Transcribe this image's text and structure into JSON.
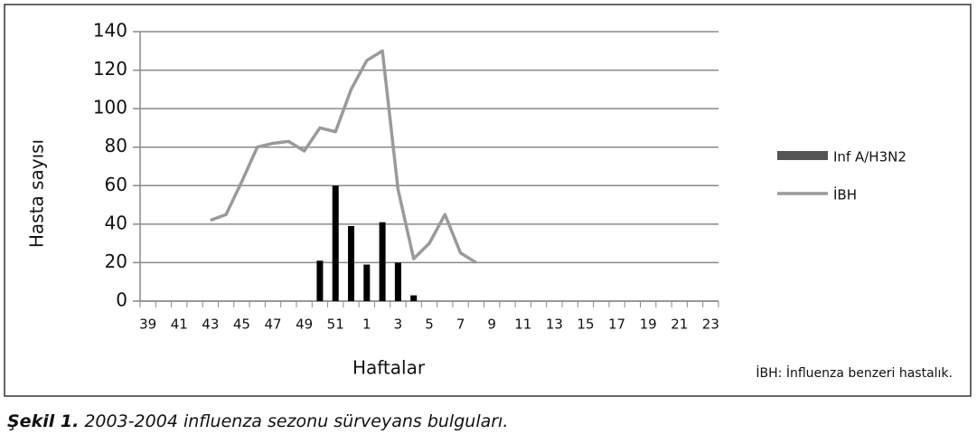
{
  "chart_data": {
    "type": "bar-line",
    "y_label": "Hasta sayısı",
    "x_label": "Haftalar",
    "annotation": "İBH: İnfluenza benzeri hastalık.",
    "categories": [
      "39",
      null,
      "41",
      null,
      "43",
      null,
      "45",
      null,
      "47",
      null,
      "49",
      null,
      "51",
      null,
      "1",
      null,
      "3",
      null,
      "5",
      null,
      "7",
      null,
      "9",
      null,
      "11",
      null,
      "13",
      null,
      "15",
      null,
      "17",
      null,
      "19",
      null,
      "21",
      null,
      "23"
    ],
    "series": [
      {
        "name": "Inf A/H3N2",
        "type": "bar",
        "color": "#000000",
        "values": [
          null,
          null,
          null,
          null,
          null,
          null,
          null,
          null,
          null,
          null,
          null,
          21,
          60,
          39,
          19,
          41,
          20,
          3,
          null,
          null,
          null,
          null,
          null,
          null,
          null,
          null,
          null,
          null,
          null,
          null,
          null,
          null,
          null,
          null,
          null,
          null,
          null
        ]
      },
      {
        "name": "İBH",
        "type": "line",
        "color": "#9a9a9a",
        "values": [
          null,
          null,
          null,
          null,
          42,
          45,
          62,
          80,
          82,
          83,
          78,
          90,
          88,
          110,
          125,
          130,
          58,
          22,
          30,
          45,
          25,
          20,
          null,
          null,
          null,
          null,
          null,
          null,
          null,
          null,
          null,
          null,
          null,
          null,
          null,
          null,
          null
        ]
      }
    ],
    "ylim": [
      0,
      140
    ],
    "yticks": [
      0,
      20,
      40,
      60,
      80,
      100,
      120,
      140
    ],
    "grid": true
  },
  "caption": {
    "label": "Şekil 1.",
    "text": "2003-2004 influenza sezonu sürveyans bulguları."
  }
}
